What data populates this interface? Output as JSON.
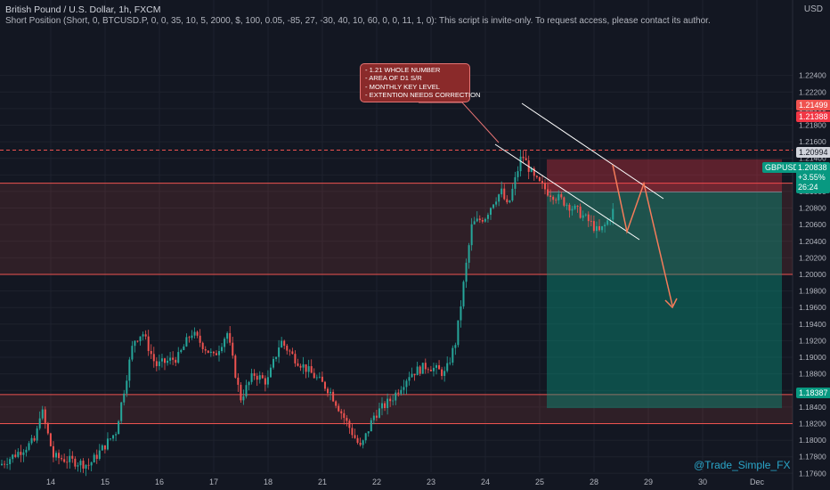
{
  "header": {
    "title": "British Pound / U.S. Dollar, 1h, FXCM",
    "indicator": "Short Position (Short, 0, BTCUSD.P, 0, 0, 35, 10, 5, 2000, $, 100, 0.05, -85, 27, -30, 40, 10, 60, 0, 0, 11, 1, 0): This script is invite-only. To request access, please contact its author."
  },
  "currency": "USD",
  "annotation": [
    "- 1.21 WHOLE NUMBER",
    "- AREA OF D1 S/R",
    "- MONTHLY KEY LEVEL",
    "- EXTENTION NEEDS CORRECTION"
  ],
  "watermark": "@Trade_Simple_FX",
  "price_tags": {
    "stop_high": "1.21499",
    "stop": "1.21388",
    "entry": "1.20994",
    "symbol": "GBPUSD",
    "current": "1.20838",
    "change": "+3.55%",
    "countdown": "26:24",
    "target": "1.18387"
  },
  "colors": {
    "up": "#26a69a",
    "down": "#ef5350",
    "bg": "#131722",
    "annotation": "#8a2a2a"
  },
  "chart_data": {
    "type": "candlestick",
    "title": "British Pound / U.S. Dollar, 1h, FXCM",
    "ylim": [
      1.175,
      1.225
    ],
    "y_ticks": [
      "1.22400",
      "1.22200",
      "1.22000",
      "1.21800",
      "1.21600",
      "1.21400",
      "1.21200",
      "1.21000",
      "1.20800",
      "1.20600",
      "1.20400",
      "1.20200",
      "1.20000",
      "1.19800",
      "1.19600",
      "1.19400",
      "1.19200",
      "1.19000",
      "1.18800",
      "1.18600",
      "1.18400",
      "1.18200",
      "1.18000",
      "1.17800",
      "1.17600"
    ],
    "x_ticks": [
      "14",
      "15",
      "16",
      "17",
      "18",
      "21",
      "22",
      "23",
      "24",
      "25",
      "28",
      "29",
      "30",
      "Dec"
    ],
    "zones": [
      {
        "name": "resistance",
        "low": 1.2,
        "high": 1.211
      },
      {
        "name": "support",
        "low": 1.182,
        "high": 1.1855
      }
    ],
    "position": {
      "side": "short",
      "entry": 1.20994,
      "stop": 1.21388,
      "target": 1.18387
    },
    "levels": [
      1.21499
    ],
    "close": 1.20838
  }
}
